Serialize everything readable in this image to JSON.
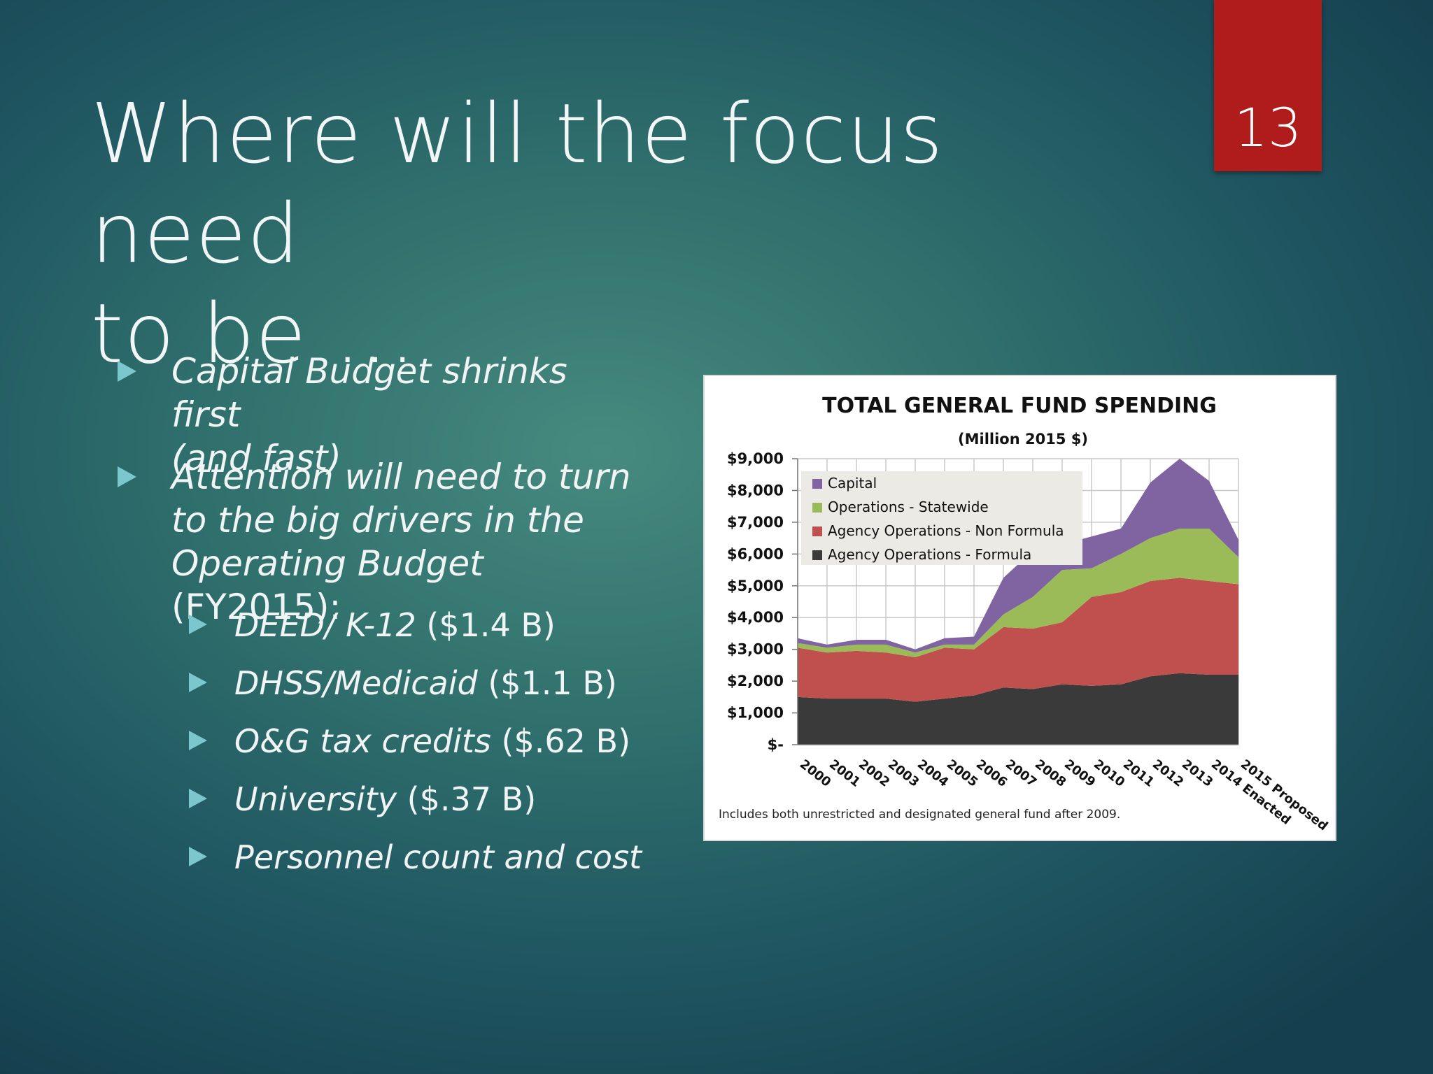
{
  "slide": {
    "title_line1": "Where will the focus need",
    "title_line2": "to be …",
    "number": "13",
    "accent_color": "#b01c1c",
    "bullet_color": "#7cc7cd"
  },
  "bullets": [
    {
      "lines": [
        "Capital Budget shrinks first",
        "(and fast)"
      ]
    },
    {
      "lines": [
        "Attention will need to turn",
        "to the big drivers in the"
      ],
      "last_italic": "Operating Budget",
      "last_plain": " (FY2015):"
    }
  ],
  "sub_bullets": [
    {
      "italic": "DEED/ K-12",
      "plain": " ($1.4 B)"
    },
    {
      "italic": "DHSS/Medicaid",
      "plain": " ($1.1 B)"
    },
    {
      "italic": "O&G tax credits",
      "plain": " ($.62 B)"
    },
    {
      "italic": "University",
      "plain": " ($.37 B)"
    },
    {
      "italic": "Personnel count and cost",
      "plain": ""
    }
  ],
  "chart_data": {
    "type": "area",
    "stacked": true,
    "title": "TOTAL GENERAL FUND SPENDING",
    "subtitle": "(Million 2015 $)",
    "footnote": "Includes both unrestricted and designated general fund after 2009.",
    "categories": [
      "2000",
      "2001",
      "2002",
      "2003",
      "2004",
      "2005",
      "2006",
      "2007",
      "2008",
      "2009",
      "2010",
      "2011",
      "2012",
      "2013",
      "2014 Enacted",
      "2015 Proposed"
    ],
    "y_ticks": [
      "$-",
      "$1,000",
      "$2,000",
      "$3,000",
      "$4,000",
      "$5,000",
      "$6,000",
      "$7,000",
      "$8,000",
      "$9,000"
    ],
    "ylim": [
      0,
      9000
    ],
    "grid": true,
    "legend_position": "top-left",
    "series": [
      {
        "name": "Agency Operations - Formula",
        "color": "#3a3a3a",
        "values": [
          1500,
          1450,
          1450,
          1450,
          1350,
          1450,
          1550,
          1800,
          1750,
          1900,
          1850,
          1900,
          2150,
          2250,
          2200,
          2200
        ]
      },
      {
        "name": "Agency Operations - Non Formula",
        "color": "#c0504d",
        "values": [
          1550,
          1450,
          1500,
          1450,
          1400,
          1600,
          1450,
          1900,
          1900,
          1950,
          2800,
          2900,
          3000,
          3000,
          2950,
          2850
        ]
      },
      {
        "name": "Operations - Statewide",
        "color": "#9bbb59",
        "values": [
          150,
          150,
          200,
          250,
          150,
          100,
          150,
          400,
          1000,
          1650,
          900,
          1200,
          1350,
          1550,
          1650,
          850
        ]
      },
      {
        "name": "Capital",
        "color": "#8064a2",
        "values": [
          150,
          100,
          150,
          150,
          100,
          200,
          250,
          1150,
          1450,
          800,
          1000,
          800,
          1750,
          2200,
          1500,
          550
        ]
      }
    ],
    "legend_order": [
      "Capital",
      "Operations - Statewide",
      "Agency Operations - Non Formula",
      "Agency Operations - Formula"
    ]
  }
}
